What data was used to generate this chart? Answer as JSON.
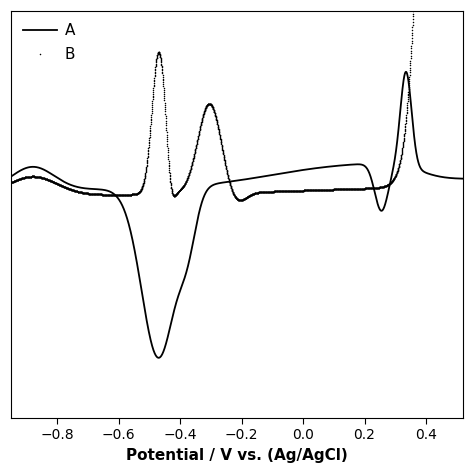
{
  "xlim": [
    -0.95,
    0.52
  ],
  "xlabel": "Potential / V vs. (Ag/AgCl)",
  "xticks": [
    -0.8,
    -0.6,
    -0.4,
    -0.2,
    0.0,
    0.2,
    0.4
  ],
  "legend_A": "A",
  "legend_B": "B",
  "line_color": "#000000",
  "background_color": "#ffffff",
  "axis_fontsize": 11,
  "legend_fontsize": 11
}
